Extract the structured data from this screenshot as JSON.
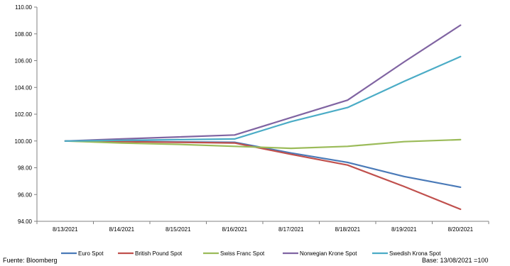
{
  "footer": {
    "source": "Fuente: Bloomberg",
    "base": "Base:  13/08/2021 =100"
  },
  "chart_data": {
    "type": "line",
    "categories": [
      "8/13/2021",
      "8/14/2021",
      "8/15/2021",
      "8/16/2021",
      "8/17/2021",
      "8/18/2021",
      "8/19/2021",
      "8/20/2021"
    ],
    "ylim": [
      94,
      110
    ],
    "yticks": [
      "94.00",
      "96.00",
      "98.00",
      "100.00",
      "102.00",
      "104.00",
      "106.00",
      "108.00",
      "110.00"
    ],
    "grid": false,
    "legend_position": "bottom",
    "series": [
      {
        "name": "Euro Spot",
        "color": "#4a7ab8",
        "values": [
          100.0,
          99.97,
          99.93,
          99.9,
          99.1,
          98.4,
          97.35,
          96.55
        ]
      },
      {
        "name": "British Pound Spot",
        "color": "#c0504d",
        "values": [
          100.0,
          99.95,
          99.9,
          99.85,
          99.0,
          98.2,
          96.6,
          94.9
        ]
      },
      {
        "name": "Swiss Franc Spot",
        "color": "#9bbb59",
        "values": [
          100.0,
          99.85,
          99.75,
          99.6,
          99.45,
          99.6,
          99.95,
          100.1
        ]
      },
      {
        "name": "Norwegian Krone Spot",
        "color": "#8064a2",
        "values": [
          100.0,
          100.15,
          100.3,
          100.45,
          101.75,
          103.05,
          105.9,
          108.65
        ]
      },
      {
        "name": "Swedish Krona Spot",
        "color": "#4bacc6",
        "values": [
          100.0,
          100.05,
          100.1,
          100.15,
          101.45,
          102.5,
          104.45,
          106.3
        ]
      }
    ]
  }
}
